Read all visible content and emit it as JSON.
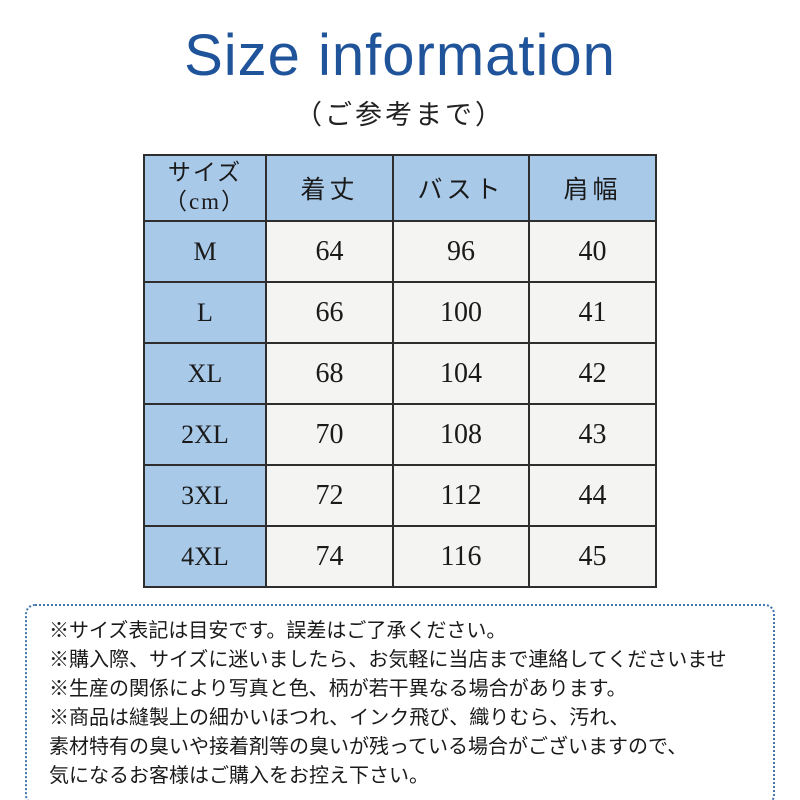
{
  "header": {
    "title": "Size information",
    "subtitle": "（ご参考まで）"
  },
  "table": {
    "header": {
      "size_line1": "サイズ",
      "size_line2": "（cm）",
      "length": "着丈",
      "bust": "バスト",
      "shoulder": "肩幅"
    },
    "rows": [
      {
        "size": "M",
        "length": "64",
        "bust": "96",
        "shoulder": "40"
      },
      {
        "size": "L",
        "length": "66",
        "bust": "100",
        "shoulder": "41"
      },
      {
        "size": "XL",
        "length": "68",
        "bust": "104",
        "shoulder": "42"
      },
      {
        "size": "2XL",
        "length": "70",
        "bust": "108",
        "shoulder": "43"
      },
      {
        "size": "3XL",
        "length": "72",
        "bust": "112",
        "shoulder": "44"
      },
      {
        "size": "4XL",
        "length": "74",
        "bust": "116",
        "shoulder": "45"
      }
    ]
  },
  "notes": {
    "lines": [
      "※サイズ表記は目安です。誤差はご了承ください。",
      "※購入際、サイズに迷いましたら、お気軽に当店まで連絡してくださいませ",
      "※生産の関係により写真と色、柄が若干異なる場合があります。",
      "※商品は縫製上の細かいほつれ、インク飛び、織りむら、汚れ、",
      "素材特有の臭いや接着剤等の臭いが残っている場合がございますので、",
      "気になるお客様はご購入をお控え下さい。"
    ]
  },
  "colors": {
    "title_blue": "#20549a",
    "header_cell_blue": "#a9c9e9",
    "data_cell_bg": "#f4f4f2",
    "table_border": "#2e2e2e",
    "note_border_blue": "#4277b0",
    "text_color": "#1a1a1a"
  }
}
